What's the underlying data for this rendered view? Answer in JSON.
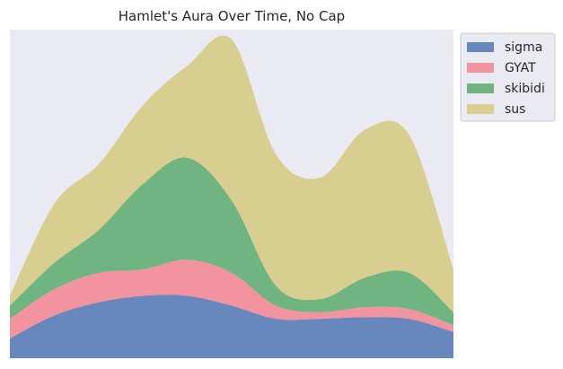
{
  "chart_data": {
    "type": "area",
    "stacked": true,
    "title": "Hamlet's Aura Over Time, No Cap",
    "xlabel": "",
    "ylabel": "",
    "x": [
      0,
      1,
      2,
      3,
      4,
      5,
      6,
      7,
      8,
      9,
      10
    ],
    "xlim": [
      0,
      10
    ],
    "ylim": [
      0,
      10
    ],
    "grid": false,
    "legend": "upper-right-outside",
    "series": [
      {
        "name": "sigma",
        "color": "#4c72b0",
        "values": [
          0.6,
          1.3,
          1.7,
          1.9,
          1.9,
          1.6,
          1.2,
          1.2,
          1.25,
          1.2,
          0.8
        ]
      },
      {
        "name": "GYAT",
        "color": "#f4818e",
        "values": [
          0.6,
          0.8,
          0.9,
          0.8,
          1.1,
          1.0,
          0.4,
          0.2,
          0.3,
          0.3,
          0.2
        ]
      },
      {
        "name": "skibidi",
        "color": "#55a868",
        "values": [
          0.4,
          0.8,
          1.3,
          2.6,
          3.1,
          2.2,
          0.6,
          0.4,
          0.9,
          1.1,
          0.4
        ]
      },
      {
        "name": "sus",
        "color": "#d4c87a",
        "values": [
          0.3,
          1.8,
          2.0,
          2.4,
          2.8,
          4.9,
          4.0,
          3.7,
          4.5,
          4.2,
          1.3
        ]
      }
    ]
  }
}
